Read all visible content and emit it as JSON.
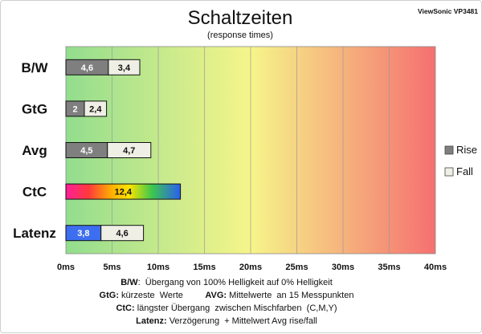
{
  "chart_data": {
    "type": "bar",
    "orientation": "horizontal",
    "stacked": true,
    "title": "Schaltzeiten",
    "subtitle": "(response times)",
    "brand": "ViewSonic VP3481",
    "categories": [
      "B/W",
      "GtG",
      "Avg",
      "CtC",
      "Latenz"
    ],
    "series": [
      {
        "name": "Rise",
        "values": [
          4.6,
          2,
          4.5,
          12.4,
          3.8
        ],
        "labels": [
          "4,6",
          "2",
          "4,5",
          "12,4",
          "3,8"
        ]
      },
      {
        "name": "Fall",
        "values": [
          3.4,
          2.4,
          4.7,
          null,
          4.6
        ],
        "labels": [
          "3,4",
          "2,4",
          "4,7",
          "",
          "4,6"
        ]
      }
    ],
    "xlim": [
      0,
      40
    ],
    "xticks": [
      "0ms",
      "5ms",
      "10ms",
      "15ms",
      "20ms",
      "25ms",
      "30ms",
      "35ms",
      "40ms"
    ],
    "grid": true,
    "legend_position": "right",
    "colors": {
      "rise": "#7f7f7f",
      "fall": "#f0efe6",
      "latenz_rise": "#3d6ef0",
      "bg_green": "#92dd8e",
      "bg_yellow": "#f6f58a",
      "bg_red": "#f57070"
    }
  },
  "notes": [
    [
      {
        "t": "B/W",
        "b": true
      },
      {
        "t": ":  Übergang von 100% Helligkeit auf 0% Helligkeit",
        "b": false
      }
    ],
    [
      {
        "t": "GtG:",
        "b": true
      },
      {
        "t": " kürzeste  Werte         ",
        "b": false
      },
      {
        "t": "AVG:",
        "b": true
      },
      {
        "t": " Mittelwerte  an 15 Messpunkten",
        "b": false
      }
    ],
    [
      {
        "t": "CtC:",
        "b": true
      },
      {
        "t": " längster Übergang  zwischen Mischfarben  (C,M,Y)",
        "b": false
      }
    ],
    [
      {
        "t": "Latenz:",
        "b": true
      },
      {
        "t": " Verzögerung  + Mittelwert Avg rise/fall",
        "b": false
      }
    ]
  ]
}
